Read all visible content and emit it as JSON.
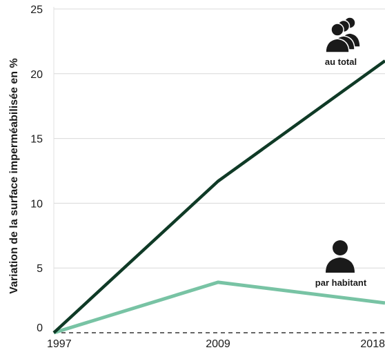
{
  "chart_data": {
    "type": "line",
    "ylabel": "Variation de la surface imperméabilisée en %",
    "xlabel": "",
    "x": [
      "1997",
      "2009",
      "2018"
    ],
    "ylim": [
      0,
      25
    ],
    "yticks": [
      0,
      5,
      10,
      15,
      20,
      25
    ],
    "grid": true,
    "series": [
      {
        "name": "au total",
        "values": [
          0,
          11.7,
          21
        ],
        "color": "#0f3a26",
        "icon": "group-of-people-icon"
      },
      {
        "name": "par habitant",
        "values": [
          0,
          3.9,
          2.3
        ],
        "color": "#78c3a4",
        "icon": "person-icon"
      }
    ]
  }
}
